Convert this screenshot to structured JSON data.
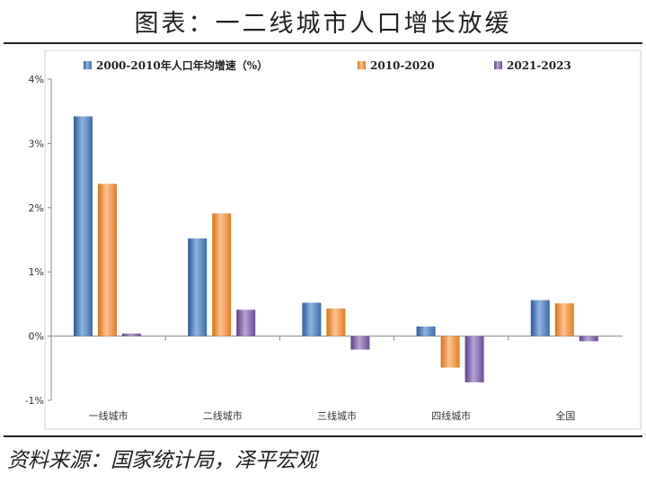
{
  "title": "图表：一二线城市人口增长放缓",
  "source": "资料来源：国家统计局，泽平宏观",
  "chart_data": {
    "type": "bar",
    "categories": [
      "一线城市",
      "二线城市",
      "三线城市",
      "四线城市",
      "全国"
    ],
    "series": [
      {
        "name": "2000-2010年人口年均增速（%）",
        "color": "#4f81bd",
        "values": [
          3.42,
          1.52,
          0.52,
          0.15,
          0.56
        ]
      },
      {
        "name": "2010-2020",
        "color": "#f79646",
        "values": [
          2.37,
          1.91,
          0.43,
          -0.49,
          0.51
        ]
      },
      {
        "name": "2021-2023",
        "color": "#8064a2",
        "values": [
          0.04,
          0.41,
          -0.21,
          -0.72,
          -0.08
        ]
      }
    ],
    "ylim": [
      -1,
      4
    ],
    "yticks": [
      "-1%",
      "0%",
      "1%",
      "2%",
      "3%",
      "4%"
    ],
    "legend_position": "top"
  }
}
